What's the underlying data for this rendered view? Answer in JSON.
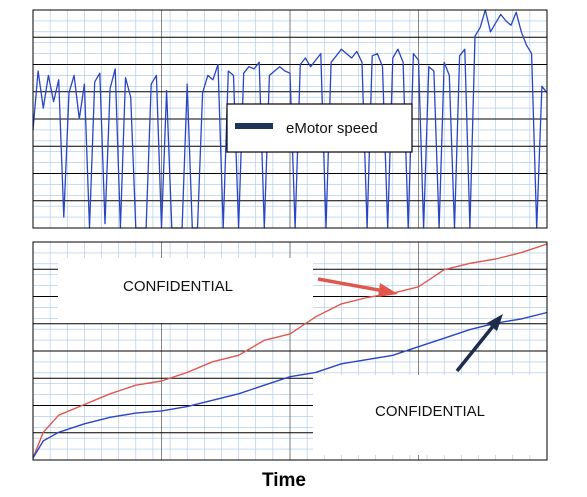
{
  "chart_data": [
    {
      "type": "line",
      "title": "",
      "xlabel": "",
      "ylabel": "",
      "grid": true,
      "legend": {
        "position": "center",
        "entries": [
          "eMotor speed"
        ]
      },
      "series": [
        {
          "name": "eMotor speed",
          "color": "#2a45c4",
          "x": [
            0.0,
            0.01,
            0.02,
            0.03,
            0.04,
            0.05,
            0.06,
            0.07,
            0.08,
            0.09,
            0.1,
            0.11,
            0.12,
            0.13,
            0.14,
            0.15,
            0.16,
            0.17,
            0.18,
            0.19,
            0.2,
            0.21,
            0.22,
            0.23,
            0.24,
            0.25,
            0.26,
            0.27,
            0.28,
            0.29,
            0.3,
            0.31,
            0.32,
            0.33,
            0.34,
            0.35,
            0.36,
            0.37,
            0.38,
            0.39,
            0.4,
            0.41,
            0.42,
            0.43,
            0.44,
            0.45,
            0.46,
            0.47,
            0.48,
            0.49,
            0.5,
            0.51,
            0.52,
            0.53,
            0.54,
            0.55,
            0.56,
            0.57,
            0.58,
            0.59,
            0.6,
            0.61,
            0.62,
            0.63,
            0.64,
            0.65,
            0.66,
            0.67,
            0.68,
            0.69,
            0.7,
            0.71,
            0.72,
            0.73,
            0.74,
            0.75,
            0.76,
            0.77,
            0.78,
            0.79,
            0.8,
            0.81,
            0.82,
            0.83,
            0.84,
            0.85,
            0.86,
            0.87,
            0.88,
            0.89,
            0.9,
            0.91,
            0.92,
            0.93,
            0.94,
            0.95,
            0.96,
            0.97,
            0.98,
            0.99,
            1.0
          ],
          "y": [
            0.45,
            0.72,
            0.55,
            0.7,
            0.58,
            0.68,
            0.05,
            0.62,
            0.7,
            0.5,
            0.66,
            0.0,
            0.67,
            0.71,
            0.02,
            0.64,
            0.73,
            0.0,
            0.69,
            0.6,
            0.0,
            0.0,
            0.0,
            0.66,
            0.7,
            0.0,
            0.63,
            0.0,
            0.0,
            0.0,
            0.66,
            0.0,
            0.0,
            0.62,
            0.7,
            0.68,
            0.75,
            0.0,
            0.72,
            0.7,
            0.0,
            0.71,
            0.74,
            0.73,
            0.76,
            0.0,
            0.7,
            0.72,
            0.74,
            0.72,
            0.71,
            0.0,
            0.75,
            0.78,
            0.74,
            0.77,
            0.8,
            0.0,
            0.76,
            0.79,
            0.82,
            0.8,
            0.78,
            0.81,
            0.76,
            0.0,
            0.79,
            0.8,
            0.74,
            0.0,
            0.78,
            0.82,
            0.76,
            0.0,
            0.8,
            0.77,
            0.0,
            0.74,
            0.72,
            0.0,
            0.76,
            0.7,
            0.0,
            0.79,
            0.82,
            0.0,
            0.88,
            0.92,
            1.0,
            0.9,
            0.94,
            0.98,
            0.95,
            0.93,
            0.99,
            0.9,
            0.84,
            0.8,
            0.0,
            0.65,
            0.62
          ]
        }
      ]
    },
    {
      "type": "line",
      "title": "",
      "xlabel": "Time",
      "ylabel": "",
      "grid": true,
      "annotations": [
        "CONFIDENTIAL",
        "CONFIDENTIAL"
      ],
      "series": [
        {
          "color": "#e2574c",
          "x": [
            0.0,
            0.02,
            0.05,
            0.1,
            0.15,
            0.2,
            0.25,
            0.3,
            0.35,
            0.4,
            0.45,
            0.5,
            0.55,
            0.6,
            0.65,
            0.7,
            0.75,
            0.8,
            0.85,
            0.9,
            0.95,
            1.0
          ],
          "y": [
            0.0,
            0.12,
            0.2,
            0.25,
            0.3,
            0.34,
            0.36,
            0.4,
            0.45,
            0.48,
            0.55,
            0.58,
            0.66,
            0.72,
            0.75,
            0.77,
            0.8,
            0.88,
            0.91,
            0.93,
            0.96,
            1.0
          ]
        },
        {
          "color": "#2a45c4",
          "x": [
            0.0,
            0.02,
            0.05,
            0.1,
            0.15,
            0.2,
            0.25,
            0.3,
            0.35,
            0.4,
            0.45,
            0.5,
            0.55,
            0.6,
            0.65,
            0.7,
            0.75,
            0.8,
            0.85,
            0.9,
            0.95,
            1.0
          ],
          "y": [
            0.0,
            0.08,
            0.12,
            0.16,
            0.19,
            0.21,
            0.22,
            0.24,
            0.27,
            0.3,
            0.34,
            0.38,
            0.4,
            0.44,
            0.46,
            0.48,
            0.52,
            0.56,
            0.6,
            0.63,
            0.65,
            0.68
          ]
        }
      ]
    }
  ],
  "labels": {
    "legend": "eMotor speed",
    "confidential_1": "CONFIDENTIAL",
    "confidential_2": "CONFIDENTIAL",
    "x_axis_title": "Time"
  },
  "colors": {
    "speed": "#2a45c4",
    "red_series": "#e2574c",
    "blue_series": "#2a45c4",
    "legend_swatch": "#1d3557",
    "arrow_red": "#e2574c",
    "arrow_dark": "#1d2c4a",
    "grid_major": "#000000",
    "grid_minor": "#a9c6e8"
  }
}
